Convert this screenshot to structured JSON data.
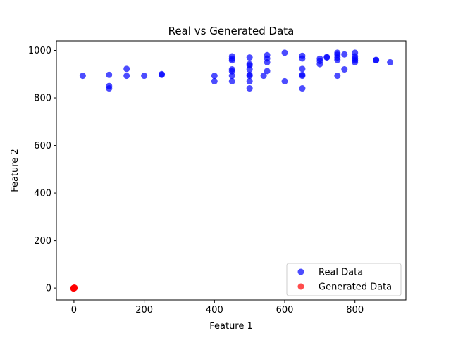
{
  "chart_data": {
    "type": "scatter",
    "title": "Real vs Generated Data",
    "xlabel": "Feature 1",
    "ylabel": "Feature 2",
    "xlim": [
      -50,
      945
    ],
    "ylim": [
      -50,
      1040
    ],
    "xticks": [
      0,
      200,
      400,
      600,
      800
    ],
    "yticks": [
      0,
      200,
      400,
      600,
      800,
      1000
    ],
    "legend_position": "lower-right",
    "series": [
      {
        "name": "Real Data",
        "color": "#0000ff",
        "points": [
          [
            25,
            893
          ],
          [
            100,
            897
          ],
          [
            100,
            850
          ],
          [
            100,
            840
          ],
          [
            150,
            922
          ],
          [
            150,
            893
          ],
          [
            200,
            893
          ],
          [
            250,
            900
          ],
          [
            250,
            897
          ],
          [
            400,
            893
          ],
          [
            400,
            870
          ],
          [
            450,
            975
          ],
          [
            450,
            965
          ],
          [
            450,
            958
          ],
          [
            450,
            920
          ],
          [
            450,
            912
          ],
          [
            450,
            893
          ],
          [
            450,
            870
          ],
          [
            500,
            970
          ],
          [
            500,
            942
          ],
          [
            500,
            937
          ],
          [
            500,
            920
          ],
          [
            500,
            897
          ],
          [
            500,
            893
          ],
          [
            500,
            870
          ],
          [
            500,
            840
          ],
          [
            540,
            893
          ],
          [
            550,
            980
          ],
          [
            550,
            966
          ],
          [
            550,
            950
          ],
          [
            550,
            913
          ],
          [
            600,
            990
          ],
          [
            600,
            870
          ],
          [
            650,
            977
          ],
          [
            650,
            966
          ],
          [
            650,
            922
          ],
          [
            650,
            897
          ],
          [
            650,
            893
          ],
          [
            650,
            840
          ],
          [
            700,
            965
          ],
          [
            700,
            955
          ],
          [
            700,
            942
          ],
          [
            720,
            972
          ],
          [
            720,
            970
          ],
          [
            750,
            990
          ],
          [
            750,
            982
          ],
          [
            750,
            970
          ],
          [
            750,
            960
          ],
          [
            750,
            893
          ],
          [
            770,
            983
          ],
          [
            770,
            920
          ],
          [
            800,
            990
          ],
          [
            800,
            975
          ],
          [
            800,
            965
          ],
          [
            800,
            958
          ],
          [
            800,
            950
          ],
          [
            860,
            960
          ],
          [
            860,
            958
          ],
          [
            900,
            950
          ]
        ]
      },
      {
        "name": "Generated Data",
        "color": "#ff0000",
        "points": [
          [
            0,
            0
          ],
          [
            1,
            0
          ],
          [
            -1,
            0
          ],
          [
            0,
            1
          ],
          [
            0,
            -1
          ],
          [
            2,
            1
          ],
          [
            -2,
            -1
          ],
          [
            1,
            2
          ],
          [
            -1,
            -2
          ]
        ]
      }
    ]
  }
}
